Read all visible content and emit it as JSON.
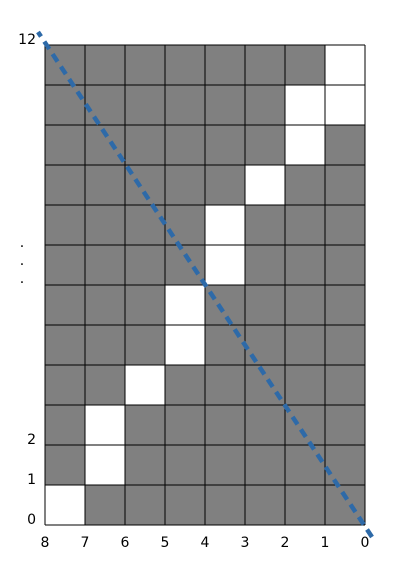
{
  "chart_data": {
    "type": "grid-diagram",
    "columns": 8,
    "rows": 12,
    "x_tick_labels": [
      "8",
      "7",
      "6",
      "5",
      "4",
      "3",
      "2",
      "1",
      "0"
    ],
    "y_tick_labels": [
      {
        "row_line": 0,
        "label": "0"
      },
      {
        "row_line": 1,
        "label": "1"
      },
      {
        "row_line": 2,
        "label": "2"
      },
      {
        "row_line": 12,
        "label": "12"
      }
    ],
    "y_ellipsis": "·",
    "white_cells": [
      {
        "row": 0,
        "col": 7
      },
      {
        "row": 1,
        "col": 7
      },
      {
        "row": 1,
        "col": 6
      },
      {
        "row": 2,
        "col": 6
      },
      {
        "row": 3,
        "col": 5
      },
      {
        "row": 4,
        "col": 4
      },
      {
        "row": 5,
        "col": 4
      },
      {
        "row": 6,
        "col": 3
      },
      {
        "row": 7,
        "col": 3
      },
      {
        "row": 8,
        "col": 2
      },
      {
        "row": 9,
        "col": 1
      },
      {
        "row": 10,
        "col": 1
      },
      {
        "row": 11,
        "col": 0
      }
    ],
    "diagonal": {
      "from": [
        0,
        0
      ],
      "to": [
        8,
        12
      ]
    }
  },
  "colors": {
    "filled_cell": "#808080",
    "empty_cell": "#ffffff",
    "grid_line": "#000000",
    "diagonal": "#2e6aa8"
  }
}
